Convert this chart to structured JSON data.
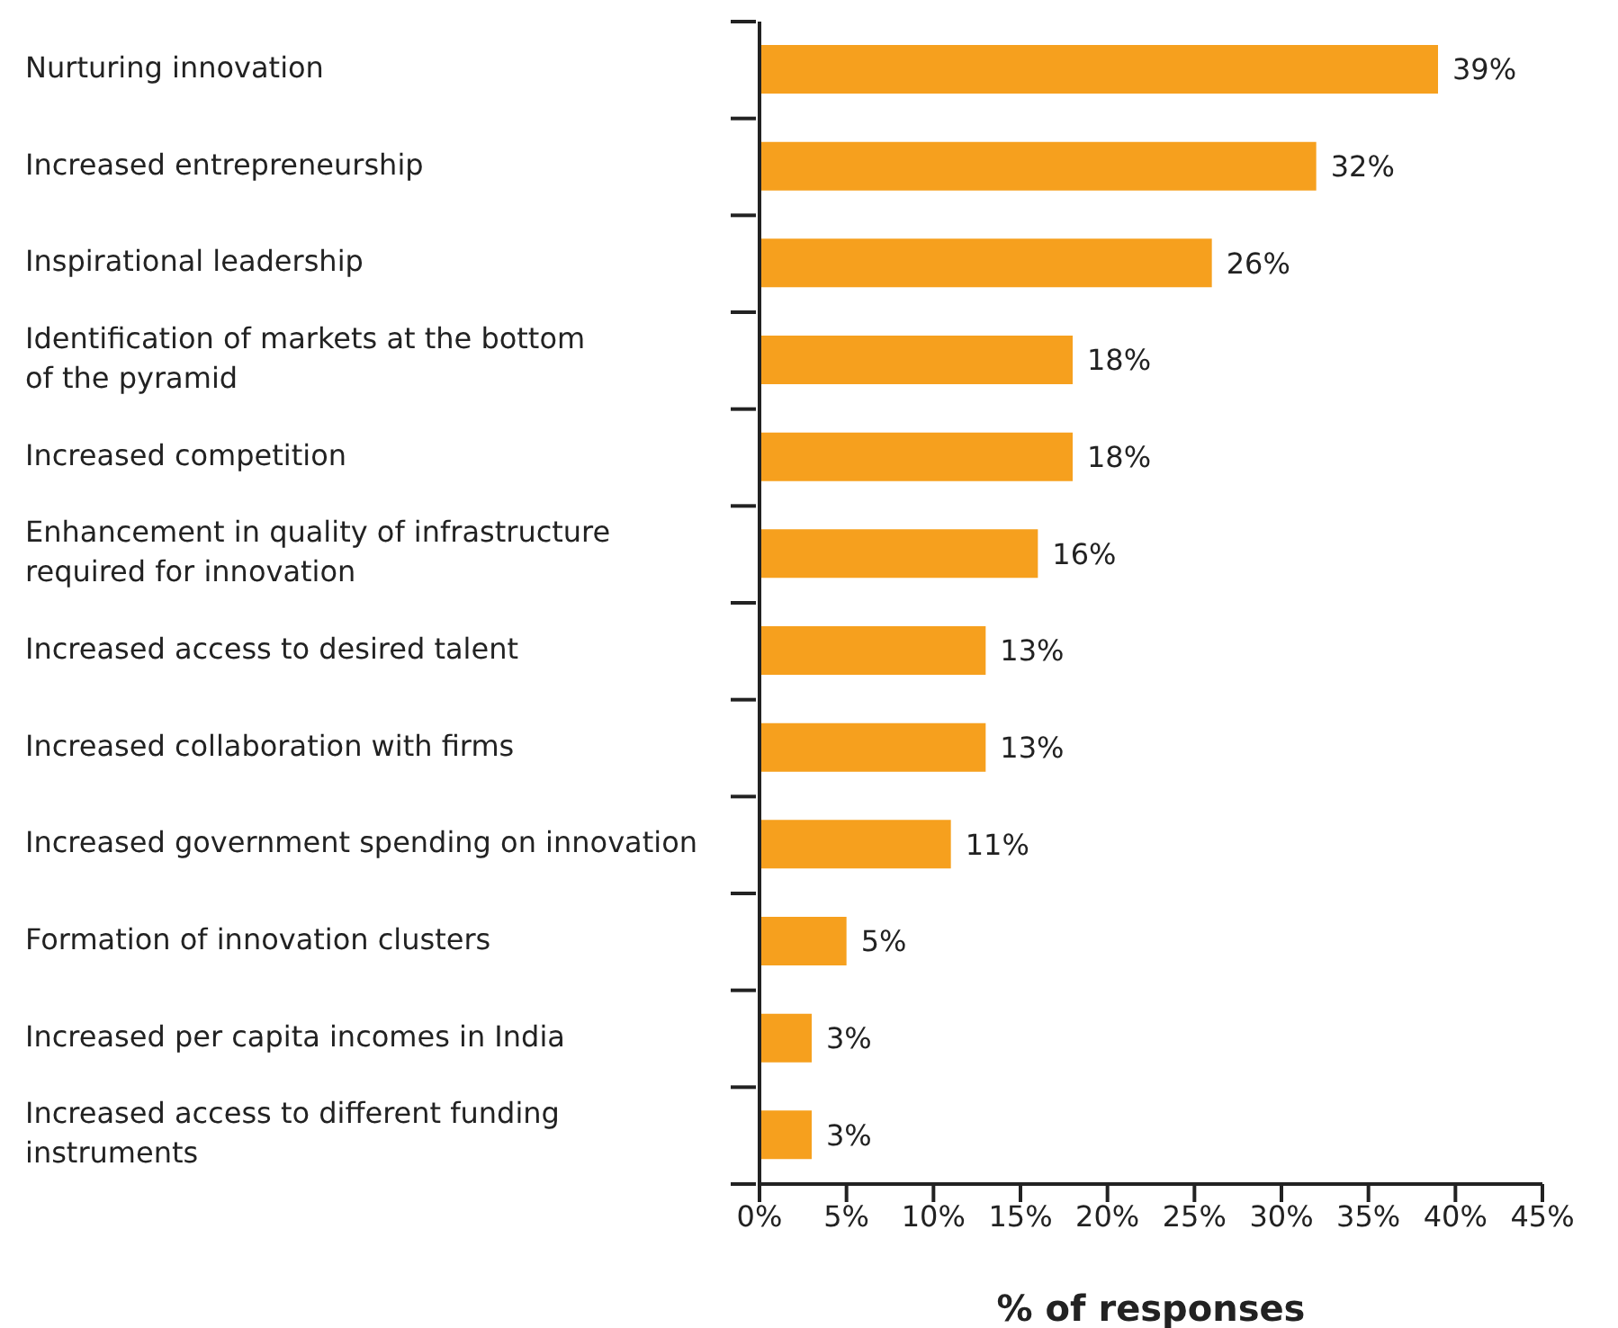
{
  "chart_data": {
    "type": "bar",
    "orientation": "horizontal",
    "xlabel": "% of responses",
    "categories": [
      "Nurturing innovation",
      "Increased entrepreneurship",
      "Inspirational leadership",
      "Identification of markets at the bottom of the pyramid",
      "Increased competition",
      "Enhancement in quality of infrastructure required for innovation",
      "Increased access to desired talent",
      "Increased collaboration with firms",
      "Increased government spending on innovation",
      "Formation of innovation clusters",
      "Increased per capita incomes in India",
      "Increased access to different funding instruments"
    ],
    "values": [
      39,
      32,
      26,
      18,
      18,
      16,
      13,
      13,
      11,
      5,
      3,
      3
    ],
    "value_labels": [
      "39%",
      "32%",
      "26%",
      "18%",
      "18%",
      "16%",
      "13%",
      "13%",
      "11%",
      "5%",
      "3%",
      "3%"
    ],
    "color": "#f6a01e",
    "xlim": [
      0,
      45
    ],
    "xticks": [
      {
        "value": 0,
        "label": "0%"
      },
      {
        "value": 5,
        "label": "5%"
      },
      {
        "value": 10,
        "label": "10%"
      },
      {
        "value": 15,
        "label": "15%"
      },
      {
        "value": 20,
        "label": "20%"
      },
      {
        "value": 25,
        "label": "25%"
      },
      {
        "value": 30,
        "label": "30%"
      },
      {
        "value": 35,
        "label": "35%"
      },
      {
        "value": 40,
        "label": "40%"
      },
      {
        "value": 45,
        "label": "45%"
      }
    ]
  }
}
